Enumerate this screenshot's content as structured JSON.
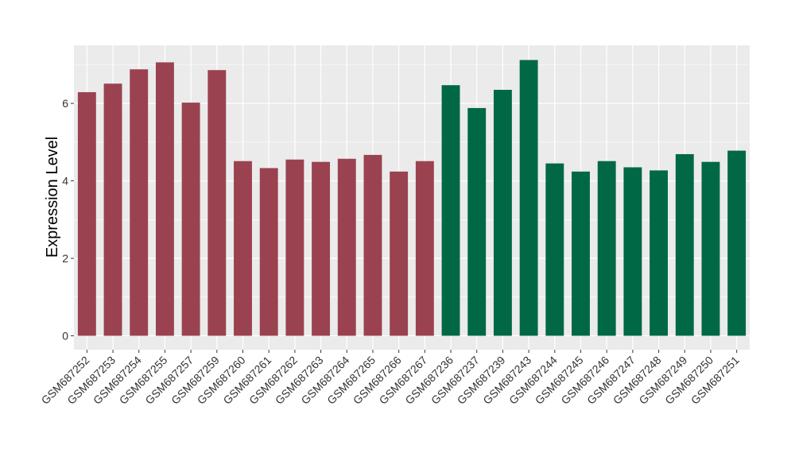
{
  "chart_data": {
    "type": "bar",
    "title": "",
    "xlabel": "",
    "ylabel": "Expression Level",
    "ylim": [
      -0.36,
      7.5
    ],
    "yticks": [
      0,
      2,
      4,
      6
    ],
    "grid": true,
    "categories": [
      "GSM687252",
      "GSM687253",
      "GSM687254",
      "GSM687255",
      "GSM687257",
      "GSM687259",
      "GSM687260",
      "GSM687261",
      "GSM687262",
      "GSM687263",
      "GSM687264",
      "GSM687265",
      "GSM687266",
      "GSM687267",
      "GSM687236",
      "GSM687237",
      "GSM687239",
      "GSM687243",
      "GSM687244",
      "GSM687245",
      "GSM687246",
      "GSM687247",
      "GSM687248",
      "GSM687249",
      "GSM687250",
      "GSM687251"
    ],
    "values": [
      6.29,
      6.51,
      6.88,
      7.06,
      6.02,
      6.86,
      4.51,
      4.33,
      4.55,
      4.49,
      4.57,
      4.67,
      4.24,
      4.51,
      6.47,
      5.88,
      6.35,
      7.12,
      4.45,
      4.24,
      4.51,
      4.35,
      4.27,
      4.69,
      4.49,
      4.78
    ],
    "groups": [
      0,
      0,
      0,
      0,
      0,
      0,
      0,
      0,
      0,
      0,
      0,
      0,
      0,
      0,
      1,
      1,
      1,
      1,
      1,
      1,
      1,
      1,
      1,
      1,
      1,
      1
    ],
    "colors": [
      "#9A4250",
      "#006845"
    ]
  }
}
